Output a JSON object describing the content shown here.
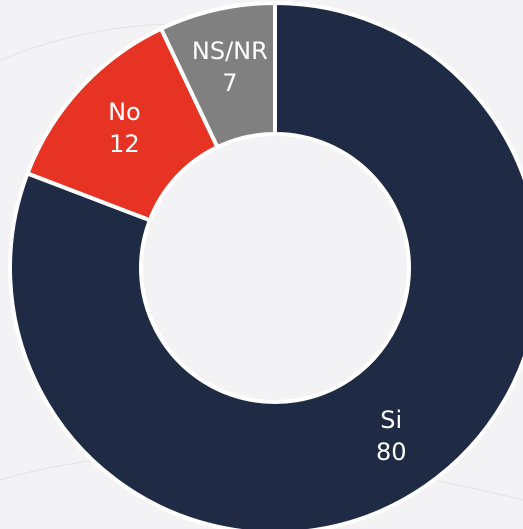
{
  "chart_data": {
    "type": "donut",
    "categories": [
      "Si",
      "No",
      "NS/NR"
    ],
    "values": [
      80,
      12,
      7
    ],
    "colors": [
      "#1f2a44",
      "#e63323",
      "#808080"
    ]
  }
}
